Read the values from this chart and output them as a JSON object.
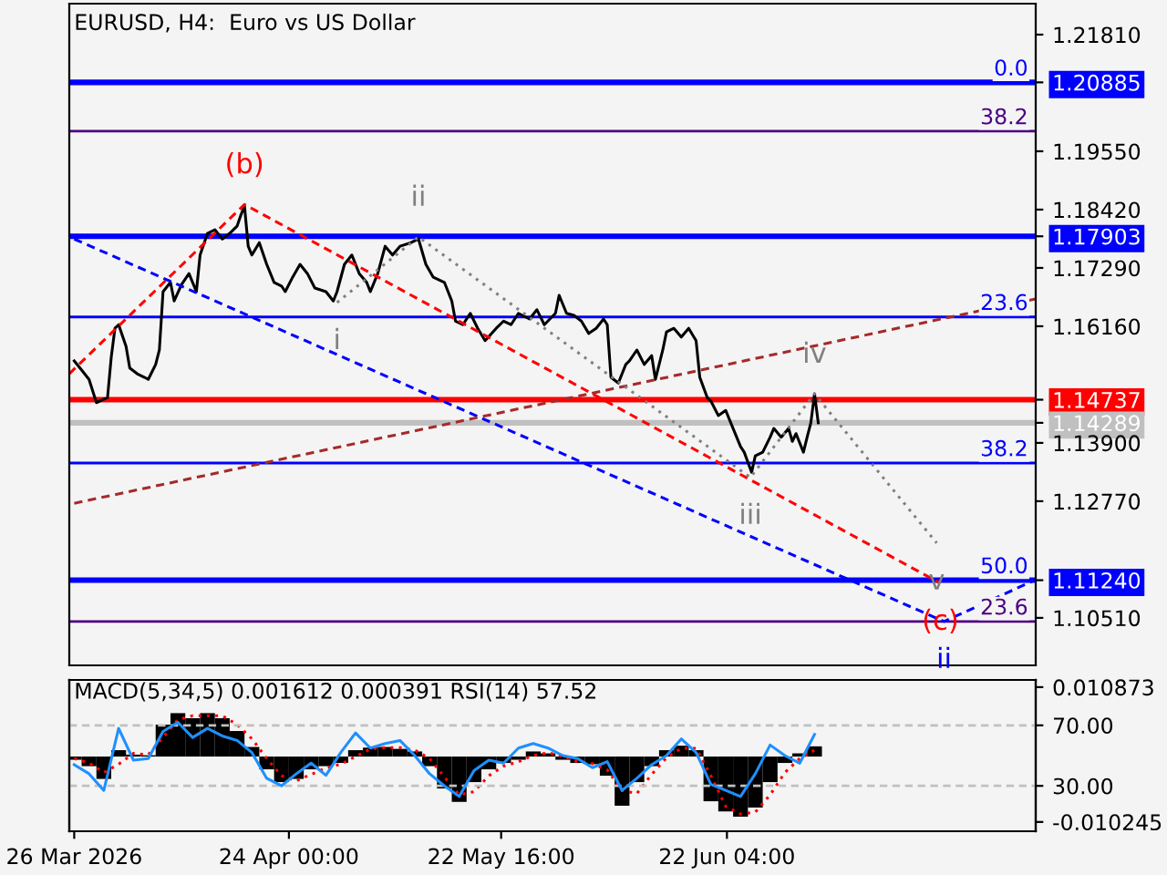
{
  "chart_data": [
    {
      "type": "line",
      "title": "EURUSD, H4:  Euro vs US Dollar",
      "series": [
        {
          "color": "#000000",
          "x": [
            "2026-03-26",
            "2026-03-27",
            "2026-03-28",
            "2026-03-29",
            "2026-03-30T12:00",
            "2026-03-31",
            "2026-03-31T12:00",
            "2026-04-01",
            "2026-04-02",
            "2026-04-02T12:00",
            "2026-04-03T12:00",
            "2026-04-04T12:00",
            "2026-04-05",
            "2026-04-06",
            "2026-04-06T12:00",
            "2026-04-07",
            "2026-04-08",
            "2026-04-08T12:00",
            "2026-04-09T12:00",
            "2026-04-10T12:00",
            "2026-04-11T12:00",
            "2026-04-12",
            "2026-04-13",
            "2026-04-14",
            "2026-04-15",
            "2026-04-16",
            "2026-04-17",
            "2026-04-17T12:00",
            "2026-04-18",
            "2026-04-18T12:00",
            "2026-04-19",
            "2026-04-20",
            "2026-04-21",
            "2026-04-22",
            "2026-04-23",
            "2026-04-23T12:00",
            "2026-04-24T12:00",
            "2026-04-25T12:00",
            "2026-04-26T12:00",
            "2026-04-27T12:00",
            "2026-04-29",
            "2026-04-30",
            "2026-04-30T12:00",
            "2026-05-01T12:00",
            "2026-05-02T12:00",
            "2026-05-03T12:00",
            "2026-05-04T12:00",
            "2026-05-05",
            "2026-05-06",
            "2026-05-07",
            "2026-05-08",
            "2026-05-09",
            "2026-05-10T12:00",
            "2026-05-11T12:00",
            "2026-05-12T12:00",
            "2026-05-13T12:00",
            "2026-05-15",
            "2026-05-16",
            "2026-05-16T12:00",
            "2026-05-17T12:00",
            "2026-05-18T12:00",
            "2026-05-19T12:00",
            "2026-05-20T12:00",
            "2026-05-22",
            "2026-05-23",
            "2026-05-24",
            "2026-05-25",
            "2026-05-26T12:00",
            "2026-05-27T12:00",
            "2026-05-28T12:00",
            "2026-05-30",
            "2026-05-30T12:00",
            "2026-05-31T12:00",
            "2026-06-01T12:00",
            "2026-06-02T12:00",
            "2026-06-03T12:00",
            "2026-06-04T12:00",
            "2026-06-05T12:00",
            "2026-06-06",
            "2026-06-06T12:00",
            "2026-06-07T12:00",
            "2026-06-08T12:00",
            "2026-06-09",
            "2026-06-10",
            "2026-06-11",
            "2026-06-12",
            "2026-06-12T12:00",
            "2026-06-13T12:00",
            "2026-06-14",
            "2026-06-15",
            "2026-06-16",
            "2026-06-17",
            "2026-06-18",
            "2026-06-18T12:00",
            "2026-06-19T12:00",
            "2026-06-20",
            "2026-06-21",
            "2026-06-22",
            "2026-06-23",
            "2026-06-24",
            "2026-06-24T12:00",
            "2026-06-25T12:00",
            "2026-06-26",
            "2026-06-27",
            "2026-06-28",
            "2026-06-28T12:00",
            "2026-06-29T12:00",
            "2026-06-30T12:00",
            "2026-07-01",
            "2026-07-01T12:00",
            "2026-07-02T12:00",
            "2026-07-03",
            "2026-07-03T12:00",
            "2026-07-04",
            "2026-07-04T12:00"
          ],
          "values": [
            1.1549,
            1.1531,
            1.1513,
            1.1468,
            1.1478,
            1.1556,
            1.1612,
            1.1619,
            1.1577,
            1.1535,
            1.1524,
            1.1517,
            1.1513,
            1.1542,
            1.157,
            1.1683,
            1.1701,
            1.1665,
            1.1697,
            1.1718,
            1.1683,
            1.1754,
            1.1796,
            1.1803,
            1.1785,
            1.1796,
            1.181,
            1.1831,
            1.1849,
            1.1771,
            1.1754,
            1.1778,
            1.1736,
            1.1701,
            1.1694,
            1.1683,
            1.1711,
            1.1736,
            1.1718,
            1.169,
            1.1683,
            1.1665,
            1.1683,
            1.1736,
            1.1754,
            1.1718,
            1.1701,
            1.1683,
            1.1718,
            1.1771,
            1.1754,
            1.1771,
            1.1778,
            1.1785,
            1.1736,
            1.1711,
            1.1701,
            1.1665,
            1.1626,
            1.1619,
            1.1641,
            1.1612,
            1.1588,
            1.1612,
            1.1626,
            1.1619,
            1.1641,
            1.163,
            1.1648,
            1.1619,
            1.1641,
            1.1676,
            1.1641,
            1.1637,
            1.1626,
            1.1602,
            1.1612,
            1.163,
            1.1619,
            1.1517,
            1.1506,
            1.1542,
            1.1549,
            1.157,
            1.1542,
            1.1559,
            1.1513,
            1.157,
            1.1605,
            1.1612,
            1.1595,
            1.1612,
            1.1588,
            1.1517,
            1.1478,
            1.1471,
            1.1443,
            1.1453,
            1.1418,
            1.1383,
            1.1372,
            1.1333,
            1.1365,
            1.1372,
            1.1401,
            1.1418,
            1.1401,
            1.1418,
            1.1393,
            1.1408,
            1.1372,
            1.1401,
            1.1429,
            1.1485,
            1.1429
          ]
        },
        {
          "color": "#ff0000",
          "line_style": "dashed",
          "x": [
            "2026-03-25T08:00",
            "2026-04-18",
            "2026-07-21"
          ],
          "values": [
            1.1524,
            1.1852,
            1.1118
          ]
        },
        {
          "color": "#0000ff",
          "line_style": "dashed",
          "x": [
            "2026-03-26",
            "2026-07-21T12:00",
            "2026-08-02T21:00"
          ],
          "values": [
            1.1785,
            1.1044,
            1.1125
          ]
        },
        {
          "color": "#a52a2a",
          "line_style": "dashed",
          "x": [
            "2026-03-26",
            "2026-08-02T21:00"
          ],
          "values": [
            1.1273,
            1.1669
          ]
        },
        {
          "color": "#808080",
          "line_style": "dotted",
          "x": [
            "2026-04-30T12:00",
            "2026-05-11T12:00",
            "2026-06-25T08:00",
            "2026-07-04",
            "2026-07-20T12:00"
          ],
          "values": [
            1.1662,
            1.1789,
            1.1323,
            1.1485,
            1.1196
          ]
        }
      ],
      "annotations": [
        {
          "text": "(b)",
          "x": "2026-04-18",
          "y": 1.1852
        },
        {
          "text": "i",
          "x": "2026-04-30T12:00",
          "y": 1.1662
        },
        {
          "text": "ii",
          "x": "2026-05-11T12:00",
          "y": 1.1789
        },
        {
          "text": "iii",
          "x": "2026-06-25T08:00",
          "y": 1.1323
        },
        {
          "text": "iv",
          "x": "2026-07-04",
          "y": 1.1485
        },
        {
          "text": "v",
          "x": "2026-07-20T12:00",
          "y": 1.1196
        },
        {
          "text": "(c)",
          "x": "2026-07-21",
          "y": 1.1118
        },
        {
          "text": "ii",
          "x": "2026-07-21T12:00",
          "y": 1.1044
        },
        {
          "text": "0.0",
          "x": "2026-08-02T21:00",
          "y": 1.20885
        },
        {
          "text": "38.2",
          "x": "2026-08-02T21:00",
          "y": 1.1994
        },
        {
          "text": "23.6",
          "x": "2026-08-02T21:00",
          "y": 1.1634
        },
        {
          "text": "38.2",
          "x": "2026-08-02T21:00",
          "y": 1.1351
        },
        {
          "text": "50.0",
          "x": "2026-08-02T21:00",
          "y": 1.1124
        },
        {
          "text": "23.6",
          "x": "2026-08-02T21:00",
          "y": 1.1044
        }
      ],
      "ref_lines": [
        {
          "axis": "y",
          "value": 1.20885,
          "color": "#0000ff"
        },
        {
          "axis": "y",
          "value": 1.1994,
          "color": "#4b0082"
        },
        {
          "axis": "y",
          "value": 1.17903,
          "color": "#0000ff"
        },
        {
          "axis": "y",
          "value": 1.1634,
          "color": "#0000ff"
        },
        {
          "axis": "y",
          "value": 1.14737,
          "color": "#ff0000"
        },
        {
          "axis": "y",
          "value": 1.14289,
          "color": "#c0c0c0"
        },
        {
          "axis": "y",
          "value": 1.1351,
          "color": "#0000ff"
        },
        {
          "axis": "y",
          "value": 1.1124,
          "color": "#0000ff"
        },
        {
          "axis": "y",
          "value": 1.1044,
          "color": "#4b0082"
        }
      ],
      "xlim": [
        "2026-03-25T08:00",
        "2026-08-02T21:00"
      ],
      "ylim": [
        1.0959,
        1.2241
      ],
      "yticks": [
        {
          "value": 1.2181,
          "label": "1.21810"
        },
        {
          "value": 1.20885,
          "label": "1.20885"
        },
        {
          "value": 1.1955,
          "label": "1.19550"
        },
        {
          "value": 1.1842,
          "label": "1.18420"
        },
        {
          "value": 1.17903,
          "label": "1.17903"
        },
        {
          "value": 1.1729,
          "label": "1.17290"
        },
        {
          "value": 1.1616,
          "label": "1.16160"
        },
        {
          "value": 1.14737,
          "label": "1.14737"
        },
        {
          "value": 1.14289,
          "label": "1.14289"
        },
        {
          "value": 1.139,
          "label": "1.13900"
        },
        {
          "value": 1.1277,
          "label": "1.12770"
        },
        {
          "value": 1.1124,
          "label": "1.11240"
        },
        {
          "value": 1.1051,
          "label": "1.10510"
        }
      ],
      "tick_labels": "y"
    },
    {
      "type": "line",
      "title": "MACD(5,34,5) 0.001612 0.000391 RSI(14) 57.52",
      "x": [
        "2026-03-26",
        "2026-03-28",
        "2026-03-30",
        "2026-04-01",
        "2026-04-03",
        "2026-04-05",
        "2026-04-07",
        "2026-04-09",
        "2026-04-11",
        "2026-04-13",
        "2026-04-15",
        "2026-04-17",
        "2026-04-19",
        "2026-04-21",
        "2026-04-23",
        "2026-04-25",
        "2026-04-27",
        "2026-04-29",
        "2026-05-01",
        "2026-05-03",
        "2026-05-05",
        "2026-05-07",
        "2026-05-09",
        "2026-05-11",
        "2026-05-13",
        "2026-05-15",
        "2026-05-17",
        "2026-05-19",
        "2026-05-21",
        "2026-05-23",
        "2026-05-25",
        "2026-05-27",
        "2026-05-29",
        "2026-05-31",
        "2026-06-02",
        "2026-06-04",
        "2026-06-06",
        "2026-06-08",
        "2026-06-10",
        "2026-06-12",
        "2026-06-14",
        "2026-06-16",
        "2026-06-18",
        "2026-06-20",
        "2026-06-22",
        "2026-06-24",
        "2026-06-26",
        "2026-06-28",
        "2026-06-30",
        "2026-07-02",
        "2026-07-04"
      ],
      "series": [
        {
          "type": "bar",
          "color": "#000000",
          "values": [
            -0.0005,
            -0.0015,
            -0.0035,
            0.001,
            0.0003,
            0.0002,
            0.005,
            0.0068,
            0.006,
            0.0068,
            0.006,
            0.004,
            0.0015,
            -0.002,
            -0.004,
            -0.0035,
            -0.002,
            -0.0015,
            -0.001,
            0.001,
            0.0014,
            0.0015,
            0.0012,
            0.0008,
            -0.0015,
            -0.005,
            -0.0071,
            -0.004,
            -0.002,
            -0.001,
            -0.0005,
            0.0008,
            0.0005,
            -0.0005,
            -0.001,
            -0.0012,
            -0.003,
            -0.0077,
            -0.004,
            -0.0015,
            0.001,
            0.0017,
            0.001,
            -0.007,
            -0.0086,
            -0.0094,
            -0.008,
            -0.004,
            -0.001,
            0.0005,
            0.0016
          ]
        },
        {
          "type": "line",
          "color": "#ff0000",
          "line_style": "dotted",
          "values": [
            -0.0003,
            -0.001,
            -0.0025,
            -0.0012,
            0.0005,
            0.0003,
            0.003,
            0.0058,
            0.0064,
            0.0064,
            0.0064,
            0.005,
            0.0028,
            -0.0003,
            -0.003,
            -0.0038,
            -0.0028,
            -0.0018,
            -0.0012,
            0.0,
            0.0012,
            0.0014,
            0.0014,
            0.001,
            -0.0003,
            -0.0032,
            -0.006,
            -0.0055,
            -0.003,
            -0.0015,
            -0.0008,
            0.0002,
            0.0006,
            0.0,
            -0.0008,
            -0.0011,
            -0.0021,
            -0.0053,
            -0.0058,
            -0.0028,
            -0.0002,
            0.0013,
            0.0013,
            -0.003,
            -0.0078,
            -0.009,
            -0.0087,
            -0.006,
            -0.0025,
            -0.0003,
            0.001
          ]
        },
        {
          "type": "line",
          "color": "#1e90ff",
          "axis": "y2",
          "values": [
            44,
            38,
            27,
            68,
            47,
            48,
            66,
            72,
            62,
            68,
            63,
            60,
            52,
            35,
            30,
            38,
            45,
            37,
            52,
            65,
            55,
            58,
            60,
            50,
            38,
            30,
            23,
            40,
            47,
            45,
            55,
            58,
            55,
            50,
            48,
            42,
            46,
            27,
            35,
            44,
            50,
            61,
            52,
            31,
            27,
            23,
            38,
            57,
            50,
            45,
            64
          ]
        }
      ],
      "ref_lines": [
        {
          "axis": "y2",
          "value": 70,
          "color": "#c0c0c0",
          "line_style": "dashed"
        },
        {
          "axis": "y2",
          "value": 30,
          "color": "#c0c0c0",
          "line_style": "dashed"
        }
      ],
      "xlim": [
        "2026-03-25T08:00",
        "2026-08-02T21:00"
      ],
      "xticks": [
        {
          "value": "2026-03-26",
          "label": "26 Mar 2026"
        },
        {
          "value": "2026-04-24",
          "label": "24 Apr 00:00"
        },
        {
          "value": "2026-05-22T16:00",
          "label": "22 May 16:00"
        },
        {
          "value": "2026-06-22T04:00",
          "label": "22 Jun 04:00"
        }
      ],
      "ylim": [
        -0.0117,
        0.012
      ],
      "yticks": [
        {
          "value": 0.010873,
          "label": "0.010873"
        },
        {
          "value": -0.010245,
          "label": "-0.010245"
        }
      ],
      "y2lim": [
        0,
        100
      ],
      "y2ticks": [
        {
          "value": 70,
          "label": "70.00"
        },
        {
          "value": 30,
          "label": "30.00"
        }
      ]
    }
  ]
}
